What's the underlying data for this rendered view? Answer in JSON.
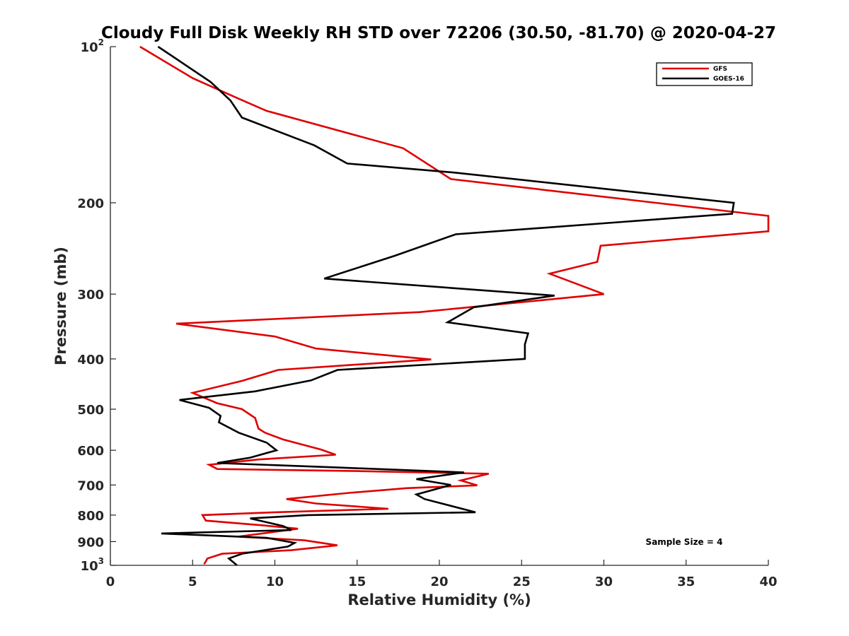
{
  "chart_data": {
    "type": "line",
    "title": "Cloudy Full Disk Weekly RH STD over 72206 (30.50, -81.70) @ 2020-04-27",
    "xlabel": "Relative Humidity (%)",
    "ylabel": "Pressure (mb)",
    "xlim": [
      0,
      40
    ],
    "ylim": [
      100,
      1000
    ],
    "yscale": "log",
    "y_reversed": true,
    "grid": false,
    "x_ticks": [
      "0",
      "5",
      "10",
      "15",
      "20",
      "25",
      "30",
      "35",
      "40"
    ],
    "y_ticks": [
      {
        "value": 100,
        "base": "10",
        "exp": "2"
      },
      {
        "value": 200,
        "label": "200"
      },
      {
        "value": 300,
        "label": "300"
      },
      {
        "value": 400,
        "label": "400"
      },
      {
        "value": 500,
        "label": "500"
      },
      {
        "value": 600,
        "label": "600"
      },
      {
        "value": 700,
        "label": "700"
      },
      {
        "value": 800,
        "label": "800"
      },
      {
        "value": 900,
        "label": "900"
      },
      {
        "value": 1000,
        "base": "10",
        "exp": "3"
      }
    ],
    "legend_position": "top-right",
    "series": [
      {
        "name": "GFS",
        "color": "#e00000",
        "points": [
          [
            1.8,
            100
          ],
          [
            5.0,
            115
          ],
          [
            7.8,
            126
          ],
          [
            9.5,
            133
          ],
          [
            17.8,
            157
          ],
          [
            20.7,
            180
          ],
          [
            40.0,
            212
          ],
          [
            40.0,
            227
          ],
          [
            29.8,
            242
          ],
          [
            29.6,
            260
          ],
          [
            26.7,
            274
          ],
          [
            30.0,
            300
          ],
          [
            18.8,
            325
          ],
          [
            4.0,
            342
          ],
          [
            10.0,
            362
          ],
          [
            12.5,
            382
          ],
          [
            19.5,
            401
          ],
          [
            10.2,
            420
          ],
          [
            8.0,
            441
          ],
          [
            5.0,
            465
          ],
          [
            6.5,
            487
          ],
          [
            8.0,
            500
          ],
          [
            8.8,
            520
          ],
          [
            9.0,
            545
          ],
          [
            9.4,
            555
          ],
          [
            10.5,
            572
          ],
          [
            12.8,
            598
          ],
          [
            13.7,
            612
          ],
          [
            9.0,
            625
          ],
          [
            6.0,
            640
          ],
          [
            6.5,
            652
          ],
          [
            15.0,
            658
          ],
          [
            23.0,
            666
          ],
          [
            21.3,
            686
          ],
          [
            22.3,
            701
          ],
          [
            18.0,
            710
          ],
          [
            14.5,
            725
          ],
          [
            10.7,
            745
          ],
          [
            12.5,
            760
          ],
          [
            16.9,
            778
          ],
          [
            10.0,
            790
          ],
          [
            5.6,
            800
          ],
          [
            5.8,
            820
          ],
          [
            9.4,
            838
          ],
          [
            11.4,
            850
          ],
          [
            7.8,
            880
          ],
          [
            11.8,
            895
          ],
          [
            13.8,
            915
          ],
          [
            11.0,
            935
          ],
          [
            6.8,
            950
          ],
          [
            5.9,
            970
          ],
          [
            5.7,
            995
          ]
        ]
      },
      {
        "name": "GOES-16",
        "color": "#000000",
        "points": [
          [
            2.9,
            100
          ],
          [
            6.1,
            117
          ],
          [
            7.3,
            127
          ],
          [
            8.0,
            137
          ],
          [
            12.4,
            155
          ],
          [
            14.4,
            168
          ],
          [
            21.0,
            175
          ],
          [
            37.9,
            200
          ],
          [
            37.8,
            210
          ],
          [
            21.0,
            230
          ],
          [
            17.3,
            253
          ],
          [
            13.0,
            280
          ],
          [
            27.0,
            302
          ],
          [
            22.1,
            318
          ],
          [
            20.5,
            340
          ],
          [
            25.4,
            357
          ],
          [
            25.2,
            375
          ],
          [
            25.2,
            400
          ],
          [
            13.8,
            420
          ],
          [
            12.2,
            440
          ],
          [
            8.8,
            462
          ],
          [
            4.2,
            480
          ],
          [
            6.0,
            497
          ],
          [
            6.7,
            515
          ],
          [
            6.6,
            530
          ],
          [
            7.8,
            555
          ],
          [
            9.5,
            580
          ],
          [
            10.1,
            600
          ],
          [
            8.5,
            620
          ],
          [
            6.5,
            635
          ],
          [
            14.0,
            648
          ],
          [
            21.5,
            662
          ],
          [
            18.6,
            682
          ],
          [
            20.7,
            700
          ],
          [
            18.6,
            730
          ],
          [
            19.1,
            745
          ],
          [
            22.2,
            790
          ],
          [
            12.0,
            800
          ],
          [
            8.5,
            812
          ],
          [
            10.5,
            840
          ],
          [
            11.0,
            855
          ],
          [
            3.1,
            868
          ],
          [
            9.5,
            885
          ],
          [
            11.2,
            905
          ],
          [
            10.8,
            920
          ],
          [
            8.0,
            950
          ],
          [
            7.2,
            970
          ],
          [
            7.7,
            1000
          ]
        ]
      }
    ],
    "annotation": "Sample Size = 4"
  }
}
